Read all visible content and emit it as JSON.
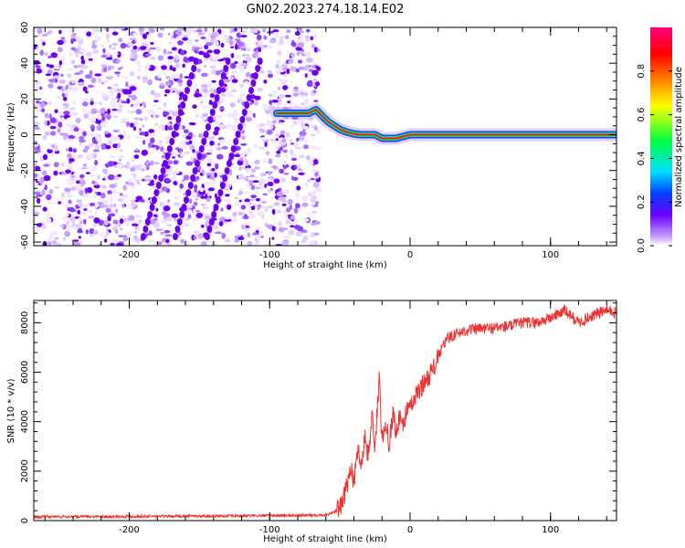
{
  "figure_title": "GN02.2023.274.18.14.E02",
  "chart_data": [
    {
      "type": "heatmap",
      "title": "",
      "xlabel": "Height of straight line (km)",
      "ylabel": "Frequency (Hz)",
      "xlim": [
        -268,
        147
      ],
      "ylim": [
        -62,
        60
      ],
      "x_ticks": [
        -200,
        -100,
        0,
        100
      ],
      "x_tick_labels": [
        "-200",
        "-100",
        "0",
        "100"
      ],
      "y_ticks": [
        -60,
        -40,
        -20,
        0,
        20,
        40,
        60
      ],
      "y_tick_labels": [
        "-60",
        "-40",
        "-20",
        "0",
        "20",
        "40",
        "60"
      ],
      "grid": false,
      "noise_region_x": [
        -268,
        -65
      ],
      "signal_trace": {
        "x": [
          -95,
          -88,
          -80,
          -72,
          -67,
          -62,
          -58,
          -54,
          -50,
          -45,
          -40,
          -35,
          -30,
          -25,
          -20,
          -15,
          -10,
          -5,
          0,
          5,
          10,
          20,
          40,
          60,
          80,
          100,
          120,
          147
        ],
        "y": [
          12,
          12,
          12,
          12,
          14,
          10,
          7,
          5,
          3,
          1.5,
          0.5,
          0,
          0,
          0,
          -2,
          -2,
          -2,
          -1,
          0,
          0,
          0,
          0,
          0,
          0,
          0,
          0,
          0,
          0
        ]
      },
      "colorbar": {
        "label": "Normalized spectral amplitude",
        "range": [
          0,
          1
        ],
        "ticks": [
          0,
          0.2,
          0.4,
          0.6,
          0.8
        ],
        "tick_labels": [
          "0.0",
          "0.2",
          "0.4",
          "0.6",
          "0.8"
        ],
        "colormap": [
          "#ffffff",
          "#c8a0ff",
          "#6a00ff",
          "#0040ff",
          "#00e0ff",
          "#00ff40",
          "#ffff00",
          "#ff8000",
          "#ff0000",
          "#ff0080"
        ]
      }
    },
    {
      "type": "line",
      "title": "",
      "xlabel": "Height of straight line (km)",
      "ylabel": "SNR (10 * v/v)",
      "xlim": [
        -268,
        147
      ],
      "ylim": [
        0,
        8900
      ],
      "x_ticks": [
        -200,
        -100,
        0,
        100
      ],
      "x_tick_labels": [
        "-200",
        "-100",
        "0",
        "100"
      ],
      "y_ticks": [
        0,
        2000,
        4000,
        6000,
        8000
      ],
      "y_tick_labels": [
        "0",
        "2000",
        "4000",
        "6000",
        "8000"
      ],
      "grid": false,
      "series": [
        {
          "name": "",
          "color": "#ee3333",
          "x": [
            -268,
            -240,
            -200,
            -160,
            -120,
            -80,
            -60,
            -52,
            -48,
            -45,
            -42,
            -40,
            -37,
            -35,
            -32,
            -30,
            -27,
            -25,
            -22,
            -20,
            -17,
            -15,
            -12,
            -10,
            -7,
            -5,
            -2,
            0,
            3,
            6,
            10,
            14,
            18,
            22,
            26,
            30,
            35,
            40,
            50,
            60,
            70,
            80,
            90,
            100,
            110,
            120,
            130,
            140,
            147
          ],
          "y": [
            150,
            160,
            170,
            180,
            190,
            210,
            230,
            400,
            700,
            1400,
            2300,
            1500,
            3000,
            2200,
            3400,
            2600,
            4200,
            3000,
            5700,
            3200,
            4100,
            3100,
            4400,
            3500,
            4300,
            3700,
            4700,
            4500,
            4900,
            5200,
            5600,
            5900,
            6300,
            6900,
            7300,
            7500,
            7600,
            7700,
            7750,
            7800,
            7850,
            8000,
            8000,
            8200,
            8500,
            8000,
            8300,
            8500,
            8400
          ]
        }
      ]
    }
  ]
}
